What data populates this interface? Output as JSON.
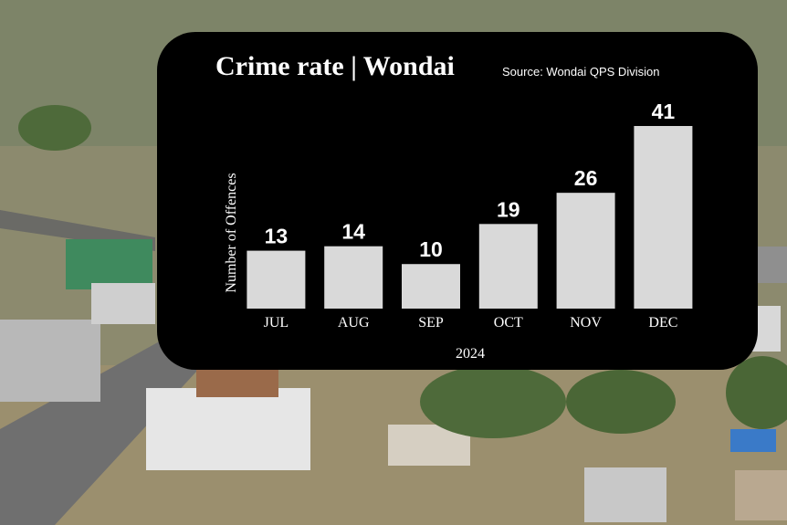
{
  "chart_data": {
    "type": "bar",
    "title": "Crime rate | Wondai",
    "subtitle": "Source: Wondai QPS Division",
    "y_label": "Number of Offences",
    "x_label": "2024",
    "categories": [
      "JUL",
      "AUG",
      "SEP",
      "OCT",
      "NOV",
      "DEC"
    ],
    "values": [
      13,
      14,
      10,
      19,
      26,
      41
    ],
    "color": "#d9d9d9"
  }
}
